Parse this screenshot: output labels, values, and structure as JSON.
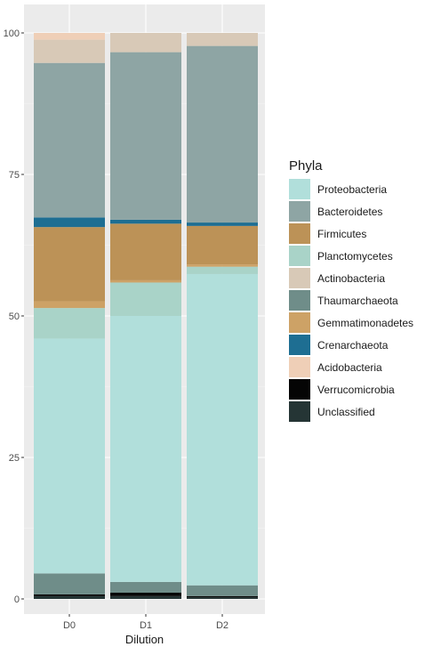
{
  "chart_data": {
    "type": "bar",
    "stacked": true,
    "xlabel": "Dilution",
    "ylabel": "",
    "categories": [
      "D0",
      "D1",
      "D2"
    ],
    "ylim": [
      0,
      100
    ],
    "yticks": [
      0,
      25,
      50,
      75,
      100
    ],
    "grid": true,
    "legend_title": "Phyla",
    "legend_position": "right",
    "series": [
      {
        "name": "Unclassified",
        "color": "#253535",
        "values": [
          0.5,
          0.5,
          0.3
        ]
      },
      {
        "name": "Verrucomicrobia",
        "color": "#050505",
        "values": [
          0.3,
          0.6,
          0.2
        ]
      },
      {
        "name": "Thaumarchaeota",
        "color": "#6f8d89",
        "values": [
          3.7,
          1.9,
          1.9
        ]
      },
      {
        "name": "Proteobacteria",
        "color": "#b1dfdb",
        "values": [
          41.5,
          47.0,
          55.0
        ]
      },
      {
        "name": "Planctomycetes",
        "color": "#a9d3c8",
        "values": [
          5.4,
          5.9,
          1.3
        ]
      },
      {
        "name": "Gemmatimonadetes",
        "color": "#cda266",
        "values": [
          1.2,
          0.4,
          0.4
        ]
      },
      {
        "name": "Firmicutes",
        "color": "#bc9257",
        "values": [
          13.1,
          10.0,
          6.8
        ]
      },
      {
        "name": "Crenarchaeota",
        "color": "#1e6e92",
        "values": [
          1.7,
          0.7,
          0.6
        ]
      },
      {
        "name": "Bacteroidetes",
        "color": "#8ea5a4",
        "values": [
          27.3,
          29.6,
          31.2
        ]
      },
      {
        "name": "Actinobacteria",
        "color": "#d8c9b7",
        "values": [
          4.1,
          3.4,
          2.3
        ]
      },
      {
        "name": "Acidobacteria",
        "color": "#efcfb7",
        "values": [
          1.2,
          0.0,
          0.0
        ]
      }
    ],
    "legend_order": [
      "Proteobacteria",
      "Bacteroidetes",
      "Firmicutes",
      "Planctomycetes",
      "Actinobacteria",
      "Thaumarchaeota",
      "Gemmatimonadetes",
      "Crenarchaeota",
      "Acidobacteria",
      "Verrucomicrobia",
      "Unclassified"
    ]
  }
}
